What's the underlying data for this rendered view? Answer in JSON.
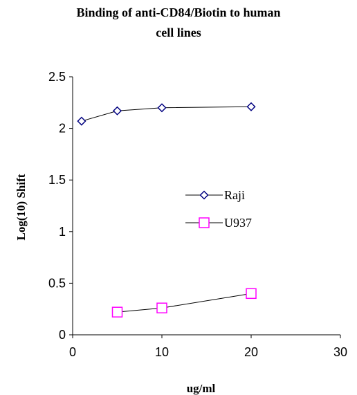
{
  "chart_data": {
    "type": "line",
    "title_lines": [
      "Binding of anti-CD84/Biotin to human",
      "cell lines"
    ],
    "xlabel": "ug/ml",
    "ylabel": "Log(10) Shift",
    "xlim": [
      0,
      30
    ],
    "ylim": [
      0,
      2.5
    ],
    "x_ticks": [
      "0",
      "10",
      "20",
      "30"
    ],
    "y_ticks": [
      "0",
      "0.5",
      "1",
      "1.5",
      "2",
      "2.5"
    ],
    "grid": false,
    "legend_position": "center-right",
    "series": [
      {
        "name": "Raji",
        "marker": "diamond",
        "color": "#000080",
        "points": [
          [
            1,
            2.07
          ],
          [
            5,
            2.17
          ],
          [
            10,
            2.2
          ],
          [
            20,
            2.21
          ]
        ]
      },
      {
        "name": "U937",
        "marker": "square",
        "color": "#ff00ff",
        "points": [
          [
            5,
            0.22
          ],
          [
            10,
            0.26
          ],
          [
            20,
            0.4
          ]
        ]
      }
    ]
  }
}
